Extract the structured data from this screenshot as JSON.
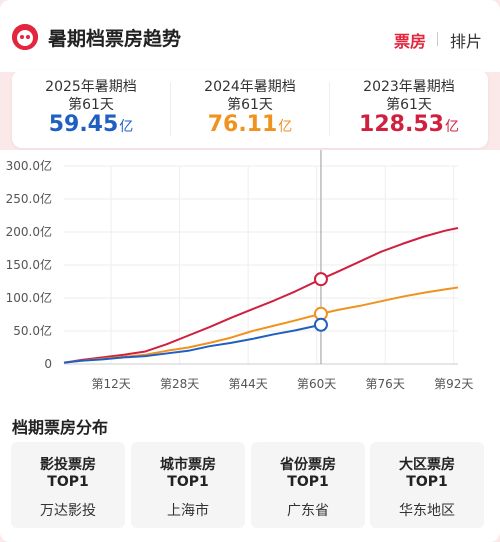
{
  "header": {
    "title": "暑期档票房趋势",
    "tabs": [
      {
        "label": "票房",
        "active": true
      },
      {
        "label": "排片",
        "active": false
      }
    ],
    "accent": "#e3263e",
    "logo_icon": "cat-face-logo-icon"
  },
  "stats": [
    {
      "year_label": "2025年暑期档",
      "day_label": "第61天",
      "value": "59.45",
      "unit": "亿",
      "color": "#1f5fc2"
    },
    {
      "year_label": "2024年暑期档",
      "day_label": "第61天",
      "value": "76.11",
      "unit": "亿",
      "color": "#f0921e"
    },
    {
      "year_label": "2023年暑期档",
      "day_label": "第61天",
      "value": "128.53",
      "unit": "亿",
      "color": "#d0203f"
    }
  ],
  "chart_data": {
    "type": "line",
    "x_ticks": [
      "第12天",
      "第28天",
      "第44天",
      "第60天",
      "第76天",
      "第92天"
    ],
    "y_ticks": [
      "0",
      "50.0亿",
      "100.0亿",
      "150.0亿",
      "200.0亿",
      "250.0亿",
      "300.0亿"
    ],
    "ylim": [
      0,
      300
    ],
    "xlim": [
      1,
      93
    ],
    "grid": true,
    "marker_day": 61,
    "series": [
      {
        "color": "#d0203f",
        "x": [
          1,
          5,
          10,
          15,
          20,
          25,
          30,
          35,
          40,
          45,
          50,
          55,
          61,
          65,
          70,
          75,
          80,
          85,
          90,
          93
        ],
        "y": [
          2,
          6,
          10,
          14,
          19,
          30,
          43,
          56,
          70,
          83,
          96,
          110,
          128.53,
          140,
          155,
          170,
          182,
          193,
          202,
          206
        ]
      },
      {
        "color": "#f0921e",
        "x": [
          1,
          5,
          10,
          15,
          20,
          25,
          30,
          35,
          40,
          45,
          50,
          55,
          61,
          65,
          70,
          75,
          80,
          85,
          90,
          93
        ],
        "y": [
          2,
          5,
          8,
          11,
          14,
          20,
          25,
          32,
          40,
          50,
          58,
          66,
          76.11,
          82,
          88,
          95,
          102,
          108,
          113,
          116
        ]
      },
      {
        "color": "#1f5fc2",
        "x": [
          1,
          5,
          10,
          15,
          20,
          25,
          30,
          35,
          40,
          45,
          50,
          55,
          61
        ],
        "y": [
          2,
          5,
          7,
          10,
          12,
          16,
          20,
          27,
          32,
          38,
          45,
          51,
          59.45
        ]
      }
    ]
  },
  "distribution": {
    "title": "档期票房分布",
    "cards": [
      {
        "label": "影投票房",
        "rank": "TOP1",
        "value": "万达影投"
      },
      {
        "label": "城市票房",
        "rank": "TOP1",
        "value": "上海市"
      },
      {
        "label": "省份票房",
        "rank": "TOP1",
        "value": "广东省"
      },
      {
        "label": "大区票房",
        "rank": "TOP1",
        "value": "华东地区"
      }
    ]
  }
}
